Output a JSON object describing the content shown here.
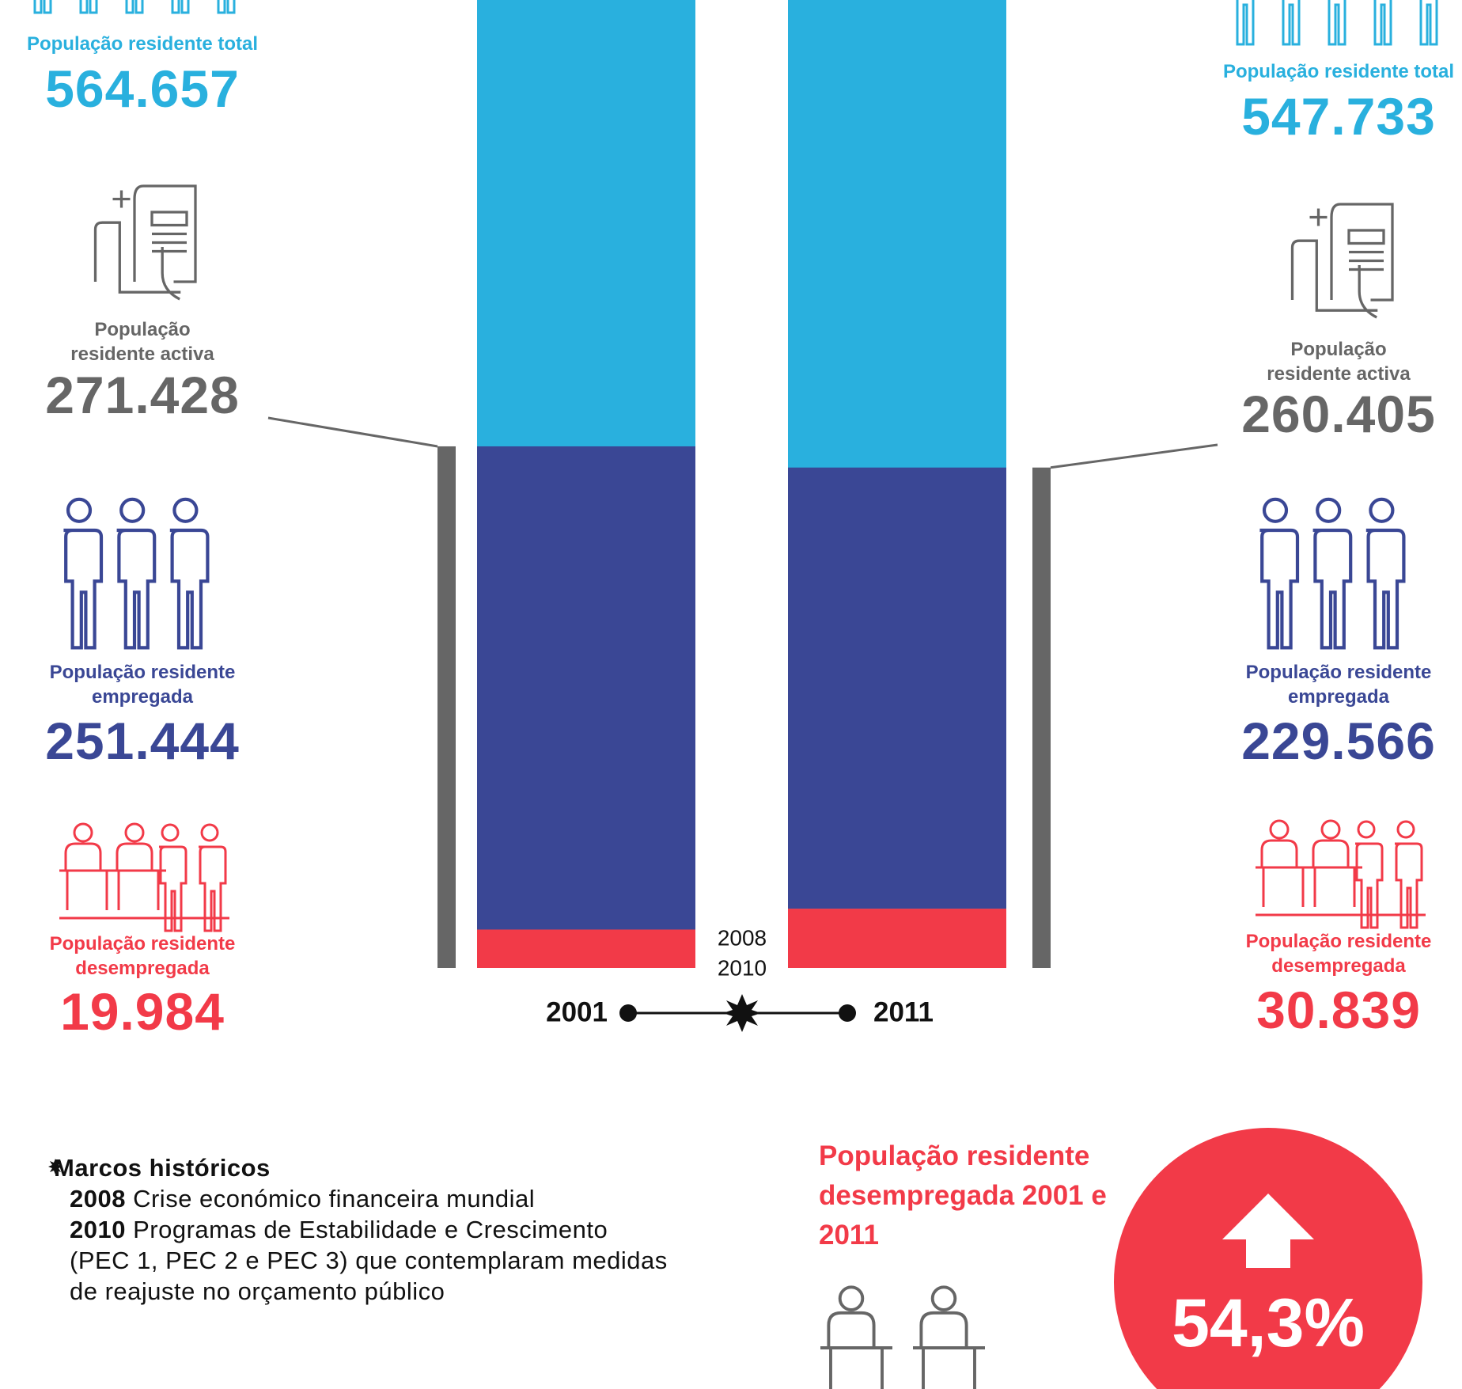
{
  "chart_data": {
    "type": "bar",
    "categories": [
      "2001",
      "2011"
    ],
    "series": [
      {
        "name": "População residente total",
        "color": "#29b0de",
        "values": [
          564657,
          547733
        ],
        "value_labels": [
          "564.657",
          "547.733"
        ]
      },
      {
        "name": "População residente activa",
        "color": "#666666",
        "values": [
          271428,
          260405
        ],
        "value_labels": [
          "271.428",
          "260.405"
        ]
      },
      {
        "name": "População residente empregada",
        "color": "#3a4795",
        "values": [
          251444,
          229566
        ],
        "value_labels": [
          "251.444",
          "229.566"
        ]
      },
      {
        "name": "População residente desempregada",
        "color": "#f23a48",
        "values": [
          19984,
          30839
        ],
        "value_labels": [
          "19.984",
          "30.839"
        ]
      }
    ],
    "milestones_title": "Marcos históricos",
    "milestones": [
      {
        "year": "2008",
        "text": "Crise económico financeira mundial"
      },
      {
        "year": "2010",
        "text": "Programas de Estabilidade e Crescimento (PEC 1, PEC 2 e PEC 3) que contemplaram medidas de reajuste no orçamento público"
      }
    ],
    "change_title": "População residente desempregada 2001 e 2011",
    "change_label": "54,3%"
  }
}
